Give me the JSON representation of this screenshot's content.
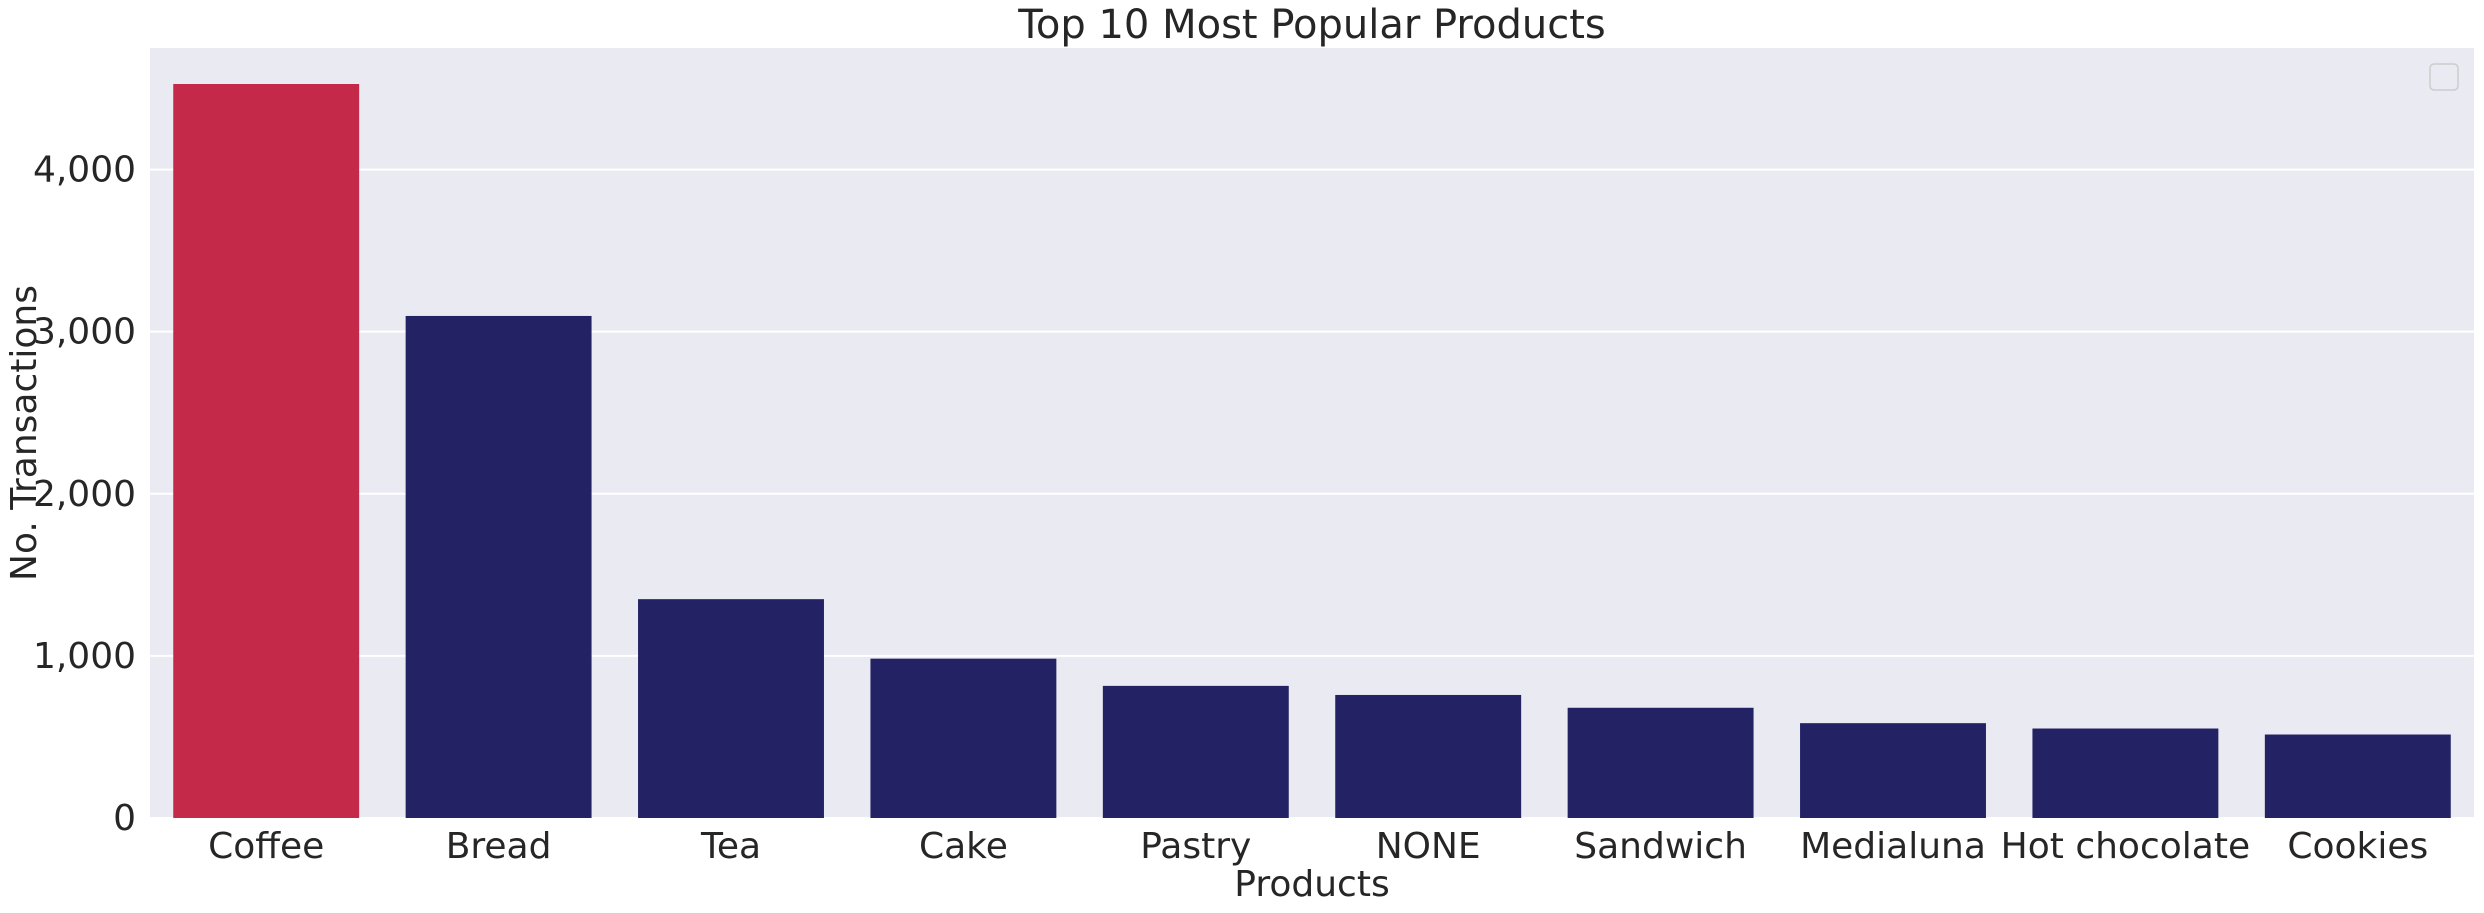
{
  "chart_data": {
    "type": "bar",
    "title": "Top 10 Most Popular Products",
    "xlabel": "Products",
    "ylabel": "No. Transactions",
    "categories": [
      "Coffee",
      "Bread",
      "Tea",
      "Cake",
      "Pastry",
      "NONE",
      "Sandwich",
      "Medialuna",
      "Hot chocolate",
      "Cookies"
    ],
    "values": [
      4528,
      3097,
      1350,
      983,
      815,
      759,
      680,
      585,
      552,
      515
    ],
    "ylim": [
      0,
      4750
    ],
    "yticks": [
      0,
      1000,
      2000,
      3000,
      4000
    ],
    "ytick_labels": [
      "0",
      "1,000",
      "2,000",
      "3,000",
      "4,000"
    ],
    "grid": true,
    "legend": "top-right (empty)",
    "colors": {
      "highlight": "#c5294a",
      "bar": "#232264",
      "plot_background": "#eaeaf2",
      "grid": "#ffffff"
    },
    "highlight_index": 0
  }
}
